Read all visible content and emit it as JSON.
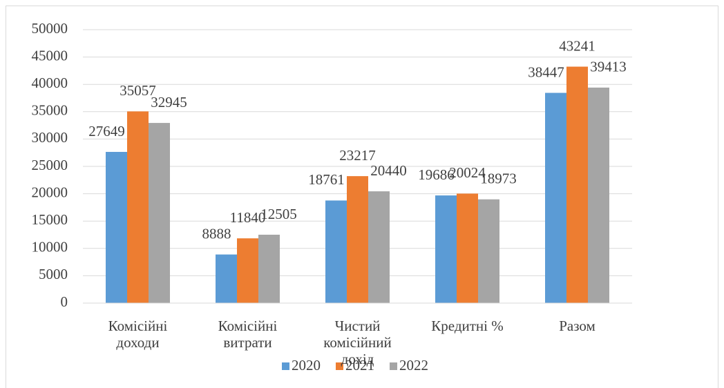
{
  "chart_data": {
    "type": "bar",
    "categories": [
      "Комісійні\nдоходи",
      "Комісійні\nвитрати",
      "Чистий\nкомісійний\nдохід",
      "Кредитні %",
      "Разом"
    ],
    "series": [
      {
        "name": "2020",
        "color": "#5b9bd5",
        "values": [
          27649,
          8888,
          18761,
          19686,
          38447
        ]
      },
      {
        "name": "2021",
        "color": "#ed7d31",
        "values": [
          35057,
          11840,
          23217,
          20024,
          43241
        ]
      },
      {
        "name": "2022",
        "color": "#a5a5a5",
        "values": [
          32945,
          12505,
          20440,
          18973,
          39413
        ]
      }
    ],
    "ylim": [
      0,
      50000
    ],
    "yticks": [
      0,
      5000,
      10000,
      15000,
      20000,
      25000,
      30000,
      35000,
      40000,
      45000,
      50000
    ],
    "grid": true,
    "legend": "bottom"
  }
}
